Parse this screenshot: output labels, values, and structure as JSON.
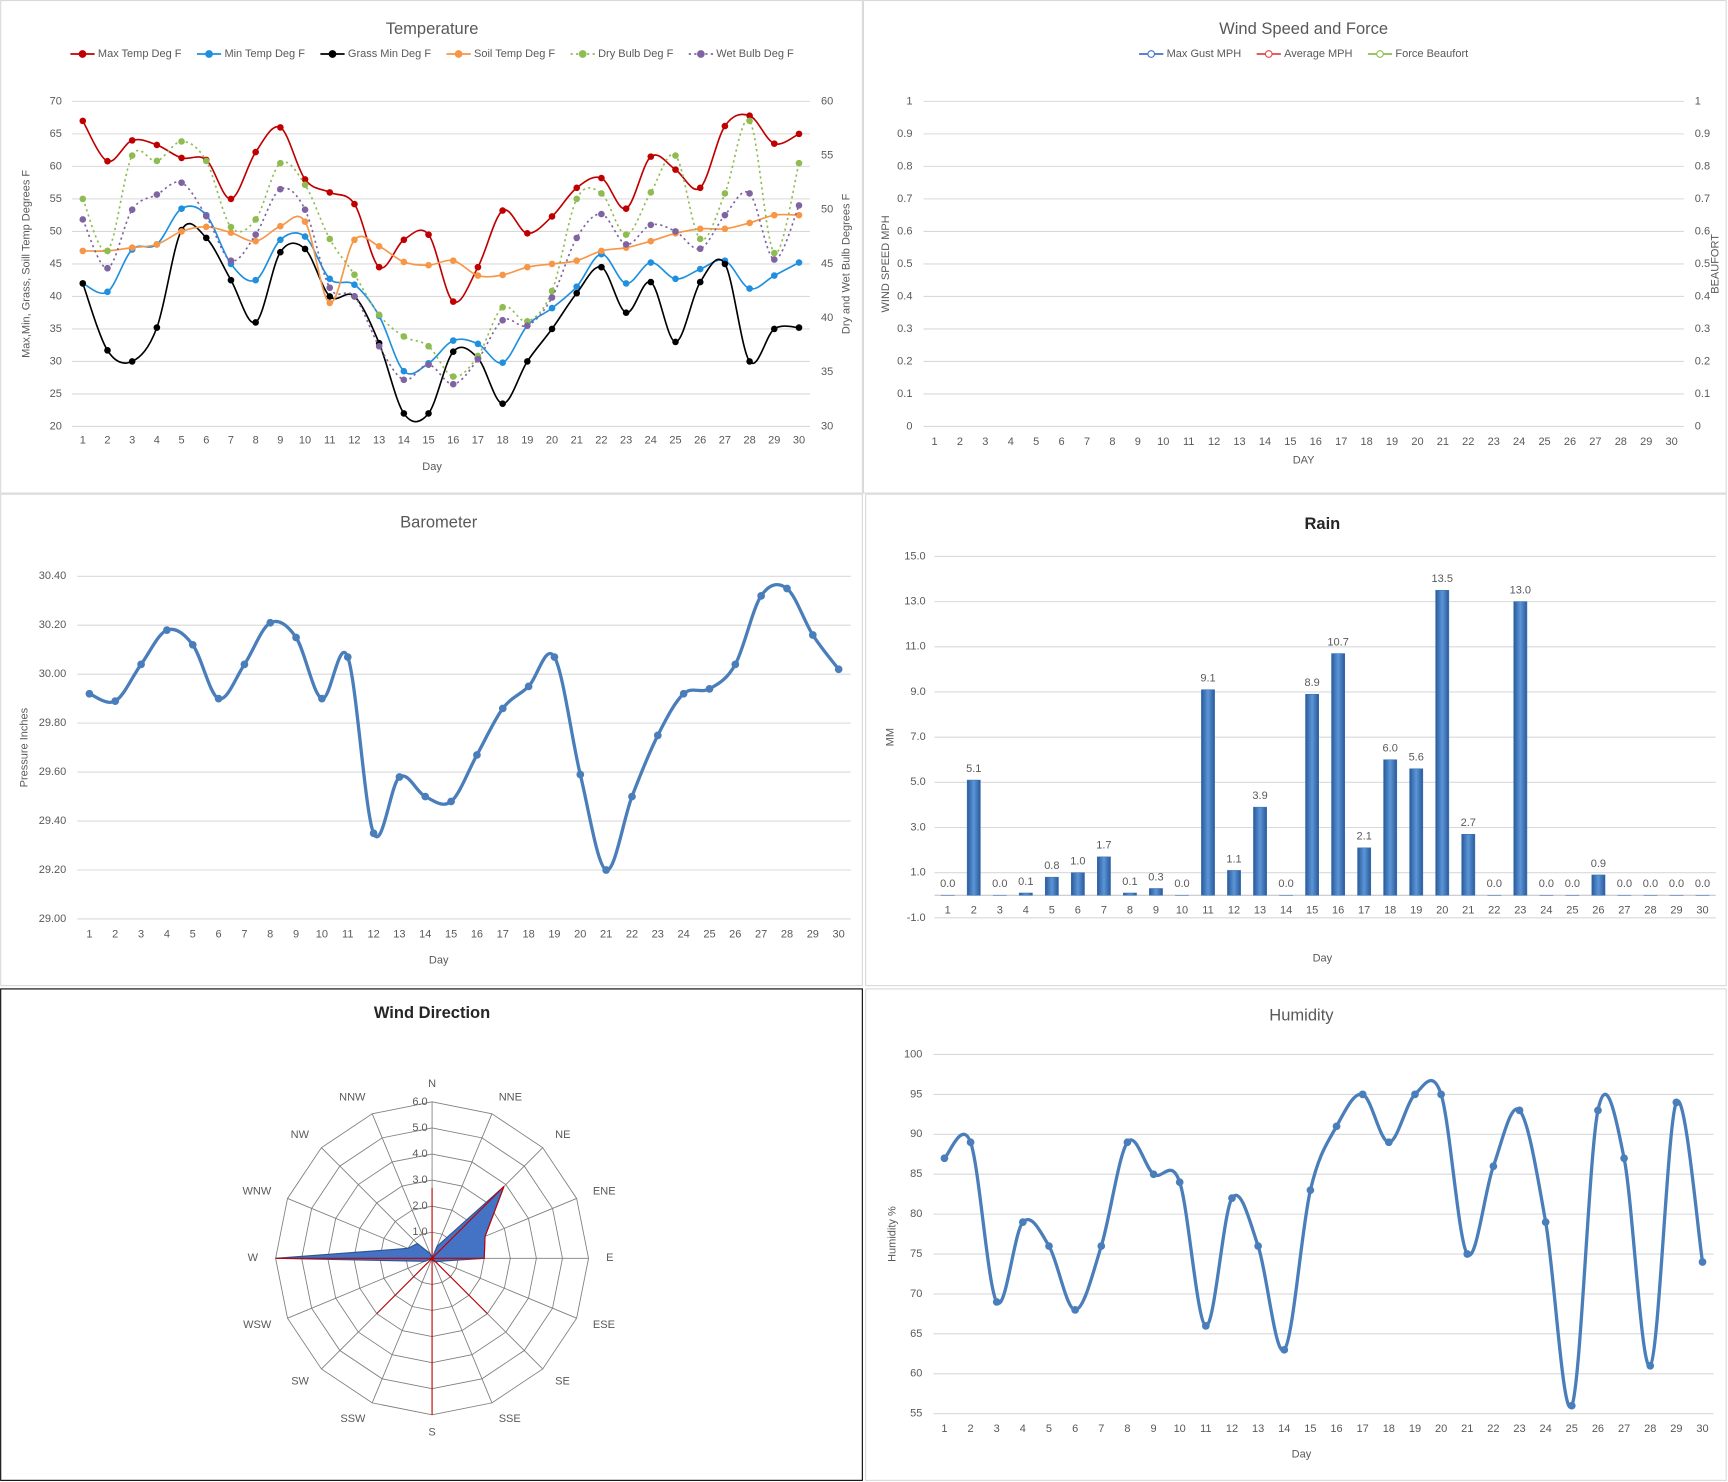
{
  "chart_data": [
    {
      "type": "line",
      "title": "Temperature",
      "x_label": "Day",
      "y_label": "Max,Min, Grass, Soill Temp Degrees F",
      "y2_label": "Dry and Wet Bulb Degrees F",
      "categories": [
        1,
        2,
        3,
        4,
        5,
        6,
        7,
        8,
        9,
        10,
        11,
        12,
        13,
        14,
        15,
        16,
        17,
        18,
        19,
        20,
        21,
        22,
        23,
        24,
        25,
        26,
        27,
        28,
        29,
        30
      ],
      "ylim": [
        20,
        70
      ],
      "yticks": [
        20,
        25,
        30,
        35,
        40,
        45,
        50,
        55,
        60,
        65,
        70
      ],
      "y2lim": [
        30,
        60
      ],
      "y2ticks": [
        30,
        35,
        40,
        45,
        50,
        55,
        60
      ],
      "grid": true,
      "legend": "top",
      "smooth": true,
      "series": [
        {
          "name": "Max Temp Deg F",
          "color": "#c00000",
          "values": [
            67,
            60.8,
            64,
            63.3,
            61.3,
            61,
            55,
            62.2,
            66,
            58,
            56,
            54.2,
            44.5,
            48.7,
            49.5,
            39.2,
            44.5,
            53.2,
            49.7,
            52.3,
            56.7,
            58.2,
            53.5,
            61.5,
            59.5,
            56.7,
            66.2,
            67.8,
            63.5,
            65
          ]
        },
        {
          "name": "Min Temp Deg F",
          "color": "#1f8fe0",
          "values": [
            42,
            40.7,
            47.2,
            48,
            53.5,
            52.5,
            45,
            42.5,
            48.7,
            49.2,
            42.7,
            41.8,
            37,
            28.5,
            29.7,
            33.2,
            32.7,
            29.8,
            35.5,
            38.2,
            41.5,
            46.5,
            42,
            45.2,
            42.7,
            44.2,
            45.5,
            41.2,
            43.2,
            45.2
          ]
        },
        {
          "name": "Grass Min Deg F",
          "color": "#000000",
          "values": [
            42,
            31.7,
            30,
            35.2,
            50.2,
            49,
            42.5,
            36,
            46.8,
            47.3,
            40,
            40,
            32.8,
            22,
            22,
            31.5,
            30.5,
            23.5,
            30,
            35,
            40.5,
            44.5,
            37.5,
            42.2,
            33,
            42.2,
            45,
            30,
            35,
            35.2
          ]
        },
        {
          "name": "Soil Temp Deg F",
          "color": "#f79646",
          "values": [
            47,
            47,
            47.5,
            48,
            50,
            50.7,
            49.8,
            48.5,
            50.8,
            51.5,
            39,
            48.7,
            47.7,
            45.3,
            44.8,
            45.5,
            43.2,
            43.3,
            44.5,
            45,
            45.5,
            47,
            47.5,
            48.5,
            49.7,
            50.4,
            50.4,
            51.3,
            52.5,
            52.5
          ]
        },
        {
          "name": "Dry Bulb Deg F",
          "color": "#8fbc52",
          "axis": "y2",
          "style": "dotted",
          "values": [
            51,
            46.2,
            55,
            54.5,
            56.3,
            54.5,
            48.4,
            49.1,
            54.3,
            52.3,
            47.3,
            44,
            40.3,
            38.3,
            37.4,
            34.6,
            36.5,
            41,
            39.7,
            42.5,
            51,
            51.5,
            47.7,
            51.6,
            55,
            47.3,
            51.5,
            58.2,
            46,
            54.3
          ]
        },
        {
          "name": "Wet Bulb Deg F",
          "color": "#8064a2",
          "axis": "y2",
          "style": "dotted",
          "values": [
            49.1,
            44.6,
            50,
            51.4,
            52.5,
            49.4,
            45.3,
            47.7,
            51.9,
            50,
            42.8,
            42,
            37.4,
            34.3,
            35.7,
            33.9,
            36.2,
            39.8,
            39.3,
            41.9,
            47.4,
            49.6,
            46.8,
            48.6,
            48,
            46.4,
            49.5,
            51.5,
            45.4,
            50.4
          ]
        }
      ]
    },
    {
      "type": "line",
      "title": "Wind Speed and Force",
      "x_label": "DAY",
      "y_label": "WIND SPEED MPH",
      "y2_label": "BEAUFORT",
      "categories": [
        1,
        2,
        3,
        4,
        5,
        6,
        7,
        8,
        9,
        10,
        11,
        12,
        13,
        14,
        15,
        16,
        17,
        18,
        19,
        20,
        21,
        22,
        23,
        24,
        25,
        26,
        27,
        28,
        29,
        30
      ],
      "ylim": [
        0,
        1
      ],
      "yticks": [
        0,
        0.1,
        0.2,
        0.3,
        0.4,
        0.5,
        0.6,
        0.7,
        0.8,
        0.9,
        1
      ],
      "y2lim": [
        0,
        1
      ],
      "y2ticks": [
        0,
        0.1,
        0.2,
        0.3,
        0.4,
        0.5,
        0.6,
        0.7,
        0.8,
        0.9,
        1
      ],
      "grid": true,
      "legend": "top",
      "smooth": true,
      "marker": "hollow",
      "series": [
        {
          "name": "Max Gust MPH",
          "color": "#4472c4",
          "values": [
            null,
            null,
            null,
            null,
            null,
            null,
            null,
            null,
            null,
            null,
            null,
            null,
            null,
            null,
            null,
            null,
            null,
            null,
            null,
            null,
            null,
            null,
            null,
            null,
            null,
            null,
            null,
            null,
            null,
            null
          ]
        },
        {
          "name": "Average MPH",
          "color": "#e04848",
          "values": [
            null,
            null,
            null,
            null,
            null,
            null,
            null,
            null,
            null,
            null,
            null,
            null,
            null,
            null,
            null,
            null,
            null,
            null,
            null,
            null,
            null,
            null,
            null,
            null,
            null,
            null,
            null,
            null,
            null,
            null
          ]
        },
        {
          "name": "Force Beaufort",
          "color": "#8fbc52",
          "axis": "y2",
          "values": [
            null,
            null,
            null,
            null,
            null,
            null,
            null,
            null,
            null,
            null,
            null,
            null,
            null,
            null,
            null,
            null,
            null,
            null,
            null,
            null,
            null,
            null,
            null,
            null,
            null,
            null,
            null,
            null,
            null,
            null
          ]
        }
      ]
    },
    {
      "type": "line",
      "title": "Barometer",
      "x_label": "Day",
      "y_label": "Pressure Inches",
      "categories": [
        1,
        2,
        3,
        4,
        5,
        6,
        7,
        8,
        9,
        10,
        11,
        12,
        13,
        14,
        15,
        16,
        17,
        18,
        19,
        20,
        21,
        22,
        23,
        24,
        25,
        26,
        27,
        28,
        29,
        30
      ],
      "ylim": [
        29,
        30.4
      ],
      "yticks": [
        {
          "value": 29,
          "label": "29.00"
        },
        {
          "value": 29.2,
          "label": "29.20"
        },
        {
          "value": 29.4,
          "label": "29.40"
        },
        {
          "value": 29.6,
          "label": "29.60"
        },
        {
          "value": 29.8,
          "label": "29.80"
        },
        {
          "value": 30,
          "label": "30.00"
        },
        {
          "value": 30.2,
          "label": "30.20"
        },
        {
          "value": 30.4,
          "label": "30.40"
        }
      ],
      "grid": true,
      "smooth": true,
      "series": [
        {
          "color": "#4a7ebb",
          "values": [
            29.92,
            29.89,
            30.04,
            30.18,
            30.12,
            29.9,
            30.04,
            30.21,
            30.15,
            29.9,
            30.07,
            29.35,
            29.58,
            29.5,
            29.48,
            29.67,
            29.86,
            29.95,
            30.07,
            29.59,
            29.2,
            29.5,
            29.75,
            29.92,
            29.94,
            30.04,
            30.32,
            30.35,
            30.16,
            30.02
          ]
        }
      ]
    },
    {
      "type": "bar",
      "title": "Rain",
      "x_label": "Day",
      "y_label": "MM",
      "categories": [
        1,
        2,
        3,
        4,
        5,
        6,
        7,
        8,
        9,
        10,
        11,
        12,
        13,
        14,
        15,
        16,
        17,
        18,
        19,
        20,
        21,
        22,
        23,
        24,
        25,
        26,
        27,
        28,
        29,
        30
      ],
      "ylim": [
        -1,
        15
      ],
      "yticks": [
        {
          "value": -1,
          "label": "-1.0"
        },
        {
          "value": 1,
          "label": "1.0"
        },
        {
          "value": 3,
          "label": "3.0"
        },
        {
          "value": 5,
          "label": "5.0"
        },
        {
          "value": 7,
          "label": "7.0"
        },
        {
          "value": 9,
          "label": "9.0"
        },
        {
          "value": 11,
          "label": "11.0"
        },
        {
          "value": 13,
          "label": "13.0"
        },
        {
          "value": 15,
          "label": "15.0"
        }
      ],
      "grid": true,
      "color": "#3a70b6",
      "values": [
        0,
        5.1,
        0,
        0.1,
        0.8,
        1,
        1.7,
        0.1,
        0.3,
        0,
        9.1,
        1.1,
        3.9,
        0,
        8.9,
        10.7,
        2.1,
        6,
        5.6,
        13.5,
        2.7,
        0,
        13,
        0,
        0,
        0.9,
        0,
        0,
        0,
        0
      ],
      "value_labels": [
        "0.0",
        "5.1",
        "0.0",
        "0.1",
        "0.8",
        "1.0",
        "1.7",
        "0.1",
        "0.3",
        "0.0",
        "9.1",
        "1.1",
        "3.9",
        "0.0",
        "8.9",
        "10.7",
        "2.1",
        "6.0",
        "5.6",
        "13.5",
        "2.7",
        "0.0",
        "13.0",
        "0.0",
        "0.0",
        "0.9",
        "0.0",
        "0.0",
        "0.0",
        "0.0"
      ]
    },
    {
      "type": "radar",
      "title": "Wind Direction",
      "categories": [
        "N",
        "NNE",
        "NE",
        "ENE",
        "E",
        "ESE",
        "SE",
        "SSE",
        "S",
        "SSW",
        "SW",
        "WSW",
        "W",
        "WNW",
        "NW",
        "NNW"
      ],
      "rlim": [
        0,
        6
      ],
      "rticks": [
        {
          "value": 0,
          "label": "0.0"
        },
        {
          "value": 1,
          "label": "1.0"
        },
        {
          "value": 2,
          "label": "2.0"
        },
        {
          "value": 3,
          "label": "3.0"
        },
        {
          "value": 4,
          "label": "4.0"
        },
        {
          "value": 5,
          "label": "5.0"
        },
        {
          "value": 6,
          "label": "6.0"
        }
      ],
      "series": [
        {
          "color": "#4472c4",
          "fill": true,
          "values": [
            0,
            0.5,
            3.9,
            2.2,
            2,
            0.3,
            0.2,
            0.1,
            0,
            0,
            0,
            0.3,
            6,
            1,
            0.8,
            0.2
          ]
        },
        {
          "color": "#c00000",
          "values": [
            2.7,
            0,
            3.9,
            2.2,
            2,
            0,
            3,
            0,
            6,
            0,
            3,
            0,
            6,
            0,
            0,
            0
          ]
        }
      ]
    },
    {
      "type": "line",
      "title": "Humidity",
      "x_label": "Day",
      "y_label": "Humidity %",
      "categories": [
        1,
        2,
        3,
        4,
        5,
        6,
        7,
        8,
        9,
        10,
        11,
        12,
        13,
        14,
        15,
        16,
        17,
        18,
        19,
        20,
        21,
        22,
        23,
        24,
        25,
        26,
        27,
        28,
        29,
        30
      ],
      "ylim": [
        55,
        100
      ],
      "yticks": [
        55,
        60,
        65,
        70,
        75,
        80,
        85,
        90,
        95,
        100
      ],
      "grid": true,
      "smooth": true,
      "series": [
        {
          "color": "#4a7ebb",
          "values": [
            87,
            89,
            69,
            79,
            76,
            68,
            76,
            89,
            85,
            84,
            66,
            82,
            76,
            63,
            83,
            91,
            95,
            89,
            95,
            95,
            75,
            86,
            93,
            79,
            56,
            93,
            87,
            61,
            94,
            74
          ]
        }
      ]
    }
  ]
}
